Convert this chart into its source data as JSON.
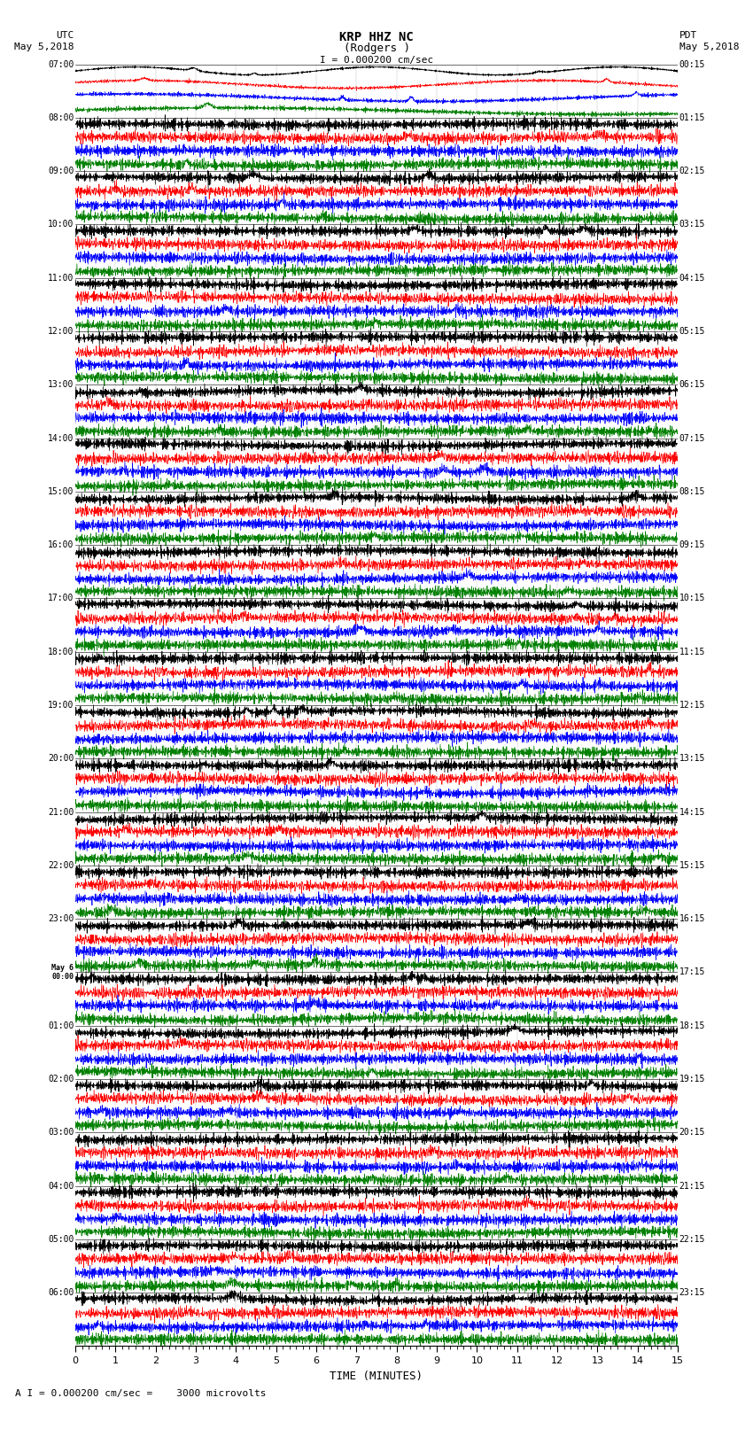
{
  "title_line1": "KRP HHZ NC",
  "title_line2": "(Rodgers )",
  "scale_label": "I = 0.000200 cm/sec",
  "utc_label_line1": "UTC",
  "utc_label_line2": "May 5,2018",
  "pdt_label_line1": "PDT",
  "pdt_label_line2": "May 5,2018",
  "bottom_label": "A I = 0.000200 cm/sec =    3000 microvolts",
  "xlabel": "TIME (MINUTES)",
  "num_hour_blocks": 24,
  "traces_per_block": 4,
  "colors": [
    "black",
    "red",
    "blue",
    "green"
  ],
  "background_color": "white",
  "left_labels": [
    "07:00",
    "08:00",
    "09:00",
    "10:00",
    "11:00",
    "12:00",
    "13:00",
    "14:00",
    "15:00",
    "16:00",
    "17:00",
    "18:00",
    "19:00",
    "20:00",
    "21:00",
    "22:00",
    "23:00",
    "May 6\n00:00",
    "01:00",
    "02:00",
    "03:00",
    "04:00",
    "05:00",
    "06:00"
  ],
  "right_labels": [
    "00:15",
    "01:15",
    "02:15",
    "03:15",
    "04:15",
    "05:15",
    "06:15",
    "07:15",
    "08:15",
    "09:15",
    "10:15",
    "11:15",
    "12:15",
    "13:15",
    "14:15",
    "15:15",
    "16:15",
    "17:15",
    "18:15",
    "19:15",
    "20:15",
    "21:15",
    "22:15",
    "23:15"
  ],
  "seed": 42,
  "fig_width": 8.5,
  "fig_height": 16.13,
  "dpi": 100
}
